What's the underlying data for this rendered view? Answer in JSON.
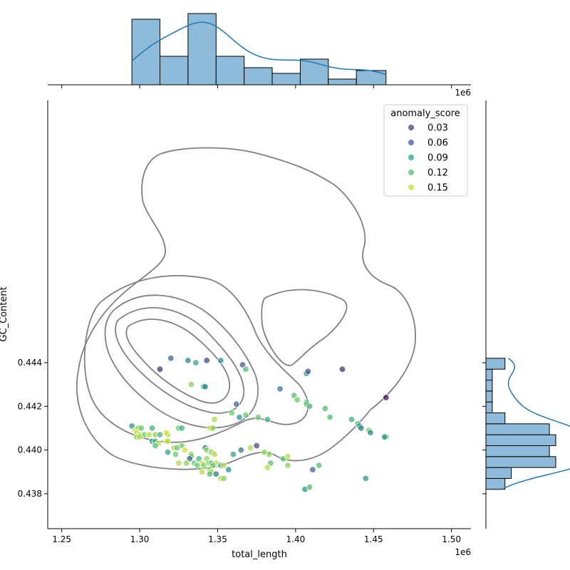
{
  "chart_data": {
    "type": "scatter",
    "xlabel": "total_length",
    "ylabel": "GC_Content",
    "x_offset_label": "1e6",
    "x_ticks": [
      "1.25",
      "1.30",
      "1.35",
      "1.40",
      "1.45",
      "1.50"
    ],
    "x_tick_values": [
      1.25,
      1.3,
      1.35,
      1.4,
      1.45,
      1.5
    ],
    "y_ticks": [
      "0.438",
      "0.440",
      "0.442",
      "0.444"
    ],
    "y_tick_values": [
      0.438,
      0.44,
      0.442,
      0.444
    ],
    "xlim": [
      1.241,
      1.5125
    ],
    "ylim": [
      0.4364,
      0.456
    ],
    "legend": {
      "title": "anomaly_score",
      "placement": "top-right",
      "entries": [
        {
          "label": "0.03",
          "color": "#46327e"
        },
        {
          "label": "0.06",
          "color": "#365c8d"
        },
        {
          "label": "0.09",
          "color": "#1fa187"
        },
        {
          "label": "0.12",
          "color": "#4ac16d"
        },
        {
          "label": "0.15",
          "color": "#bddf26"
        }
      ]
    },
    "colors": {
      "hist": "#7bafd4",
      "kde": "#1f77b4",
      "contour": "#808080"
    },
    "points": [
      {
        "x": 1.313,
        "y": 0.4437,
        "s": 0.03
      },
      {
        "x": 1.32,
        "y": 0.4442,
        "s": 0.06
      },
      {
        "x": 1.331,
        "y": 0.4441,
        "s": 0.08
      },
      {
        "x": 1.336,
        "y": 0.444,
        "s": 0.1
      },
      {
        "x": 1.343,
        "y": 0.4441,
        "s": 0.04
      },
      {
        "x": 1.352,
        "y": 0.4441,
        "s": 0.09
      },
      {
        "x": 1.366,
        "y": 0.4439,
        "s": 0.05
      },
      {
        "x": 1.368,
        "y": 0.4437,
        "s": 0.12
      },
      {
        "x": 1.407,
        "y": 0.4435,
        "s": 0.09
      },
      {
        "x": 1.408,
        "y": 0.4436,
        "s": 0.05
      },
      {
        "x": 1.43,
        "y": 0.4437,
        "s": 0.03
      },
      {
        "x": 1.333,
        "y": 0.443,
        "s": 0.14
      },
      {
        "x": 1.341,
        "y": 0.4429,
        "s": 0.1
      },
      {
        "x": 1.342,
        "y": 0.4429,
        "s": 0.08
      },
      {
        "x": 1.39,
        "y": 0.4428,
        "s": 0.07
      },
      {
        "x": 1.399,
        "y": 0.4425,
        "s": 0.12
      },
      {
        "x": 1.401,
        "y": 0.4423,
        "s": 0.13
      },
      {
        "x": 1.458,
        "y": 0.4424,
        "s": 0.01
      },
      {
        "x": 1.362,
        "y": 0.4421,
        "s": 0.06
      },
      {
        "x": 1.407,
        "y": 0.4422,
        "s": 0.12
      },
      {
        "x": 1.407,
        "y": 0.4421,
        "s": 0.13
      },
      {
        "x": 1.409,
        "y": 0.442,
        "s": 0.11
      },
      {
        "x": 1.419,
        "y": 0.4419,
        "s": 0.12
      },
      {
        "x": 1.359,
        "y": 0.4417,
        "s": 0.13
      },
      {
        "x": 1.364,
        "y": 0.4415,
        "s": 0.09
      },
      {
        "x": 1.368,
        "y": 0.4416,
        "s": 0.13
      },
      {
        "x": 1.376,
        "y": 0.4415,
        "s": 0.13
      },
      {
        "x": 1.382,
        "y": 0.4414,
        "s": 0.11
      },
      {
        "x": 1.348,
        "y": 0.4414,
        "s": 0.15
      },
      {
        "x": 1.422,
        "y": 0.4415,
        "s": 0.12
      },
      {
        "x": 1.436,
        "y": 0.4414,
        "s": 0.11
      },
      {
        "x": 1.44,
        "y": 0.4412,
        "s": 0.12
      },
      {
        "x": 1.441,
        "y": 0.4411,
        "s": 0.09
      },
      {
        "x": 1.442,
        "y": 0.441,
        "s": 0.08
      },
      {
        "x": 1.447,
        "y": 0.4409,
        "s": 0.13
      },
      {
        "x": 1.448,
        "y": 0.4408,
        "s": 0.08
      },
      {
        "x": 1.458,
        "y": 0.4406,
        "s": 0.12
      },
      {
        "x": 1.457,
        "y": 0.4406,
        "s": 0.09
      },
      {
        "x": 1.295,
        "y": 0.4411,
        "s": 0.09
      },
      {
        "x": 1.297,
        "y": 0.4409,
        "s": 0.15
      },
      {
        "x": 1.299,
        "y": 0.441,
        "s": 0.14
      },
      {
        "x": 1.301,
        "y": 0.441,
        "s": 0.13
      },
      {
        "x": 1.298,
        "y": 0.4408,
        "s": 0.16
      },
      {
        "x": 1.3,
        "y": 0.4407,
        "s": 0.15
      },
      {
        "x": 1.303,
        "y": 0.4407,
        "s": 0.13
      },
      {
        "x": 1.306,
        "y": 0.4407,
        "s": 0.15
      },
      {
        "x": 1.298,
        "y": 0.4406,
        "s": 0.14
      },
      {
        "x": 1.3,
        "y": 0.4406,
        "s": 0.15
      },
      {
        "x": 1.308,
        "y": 0.441,
        "s": 0.11
      },
      {
        "x": 1.31,
        "y": 0.4407,
        "s": 0.14
      },
      {
        "x": 1.313,
        "y": 0.4407,
        "s": 0.11
      },
      {
        "x": 1.318,
        "y": 0.4407,
        "s": 0.15
      },
      {
        "x": 1.317,
        "y": 0.4408,
        "s": 0.16
      },
      {
        "x": 1.325,
        "y": 0.441,
        "s": 0.13
      },
      {
        "x": 1.327,
        "y": 0.441,
        "s": 0.11
      },
      {
        "x": 1.345,
        "y": 0.441,
        "s": 0.16
      },
      {
        "x": 1.347,
        "y": 0.441,
        "s": 0.14
      },
      {
        "x": 1.308,
        "y": 0.4404,
        "s": 0.1
      },
      {
        "x": 1.31,
        "y": 0.4404,
        "s": 0.11
      },
      {
        "x": 1.312,
        "y": 0.4403,
        "s": 0.15
      },
      {
        "x": 1.31,
        "y": 0.4402,
        "s": 0.12
      },
      {
        "x": 1.317,
        "y": 0.4404,
        "s": 0.16
      },
      {
        "x": 1.318,
        "y": 0.4404,
        "s": 0.15
      },
      {
        "x": 1.327,
        "y": 0.4402,
        "s": 0.13
      },
      {
        "x": 1.322,
        "y": 0.4401,
        "s": 0.15
      },
      {
        "x": 1.324,
        "y": 0.4401,
        "s": 0.13
      },
      {
        "x": 1.318,
        "y": 0.4399,
        "s": 0.1
      },
      {
        "x": 1.329,
        "y": 0.44,
        "s": 0.16
      },
      {
        "x": 1.342,
        "y": 0.4401,
        "s": 0.07
      },
      {
        "x": 1.343,
        "y": 0.44,
        "s": 0.14
      },
      {
        "x": 1.346,
        "y": 0.4399,
        "s": 0.14
      },
      {
        "x": 1.348,
        "y": 0.4398,
        "s": 0.15
      },
      {
        "x": 1.323,
        "y": 0.4398,
        "s": 0.13
      },
      {
        "x": 1.333,
        "y": 0.4398,
        "s": 0.14
      },
      {
        "x": 1.333,
        "y": 0.4397,
        "s": 0.12
      },
      {
        "x": 1.332,
        "y": 0.4396,
        "s": 0.06
      },
      {
        "x": 1.338,
        "y": 0.4396,
        "s": 0.11
      },
      {
        "x": 1.343,
        "y": 0.4396,
        "s": 0.14
      },
      {
        "x": 1.335,
        "y": 0.4394,
        "s": 0.13
      },
      {
        "x": 1.34,
        "y": 0.4394,
        "s": 0.15
      },
      {
        "x": 1.344,
        "y": 0.4394,
        "s": 0.14
      },
      {
        "x": 1.346,
        "y": 0.4394,
        "s": 0.12
      },
      {
        "x": 1.349,
        "y": 0.4394,
        "s": 0.15
      },
      {
        "x": 1.325,
        "y": 0.4394,
        "s": 0.15
      },
      {
        "x": 1.33,
        "y": 0.4394,
        "s": 0.14
      },
      {
        "x": 1.337,
        "y": 0.4393,
        "s": 0.13
      },
      {
        "x": 1.341,
        "y": 0.4393,
        "s": 0.14
      },
      {
        "x": 1.347,
        "y": 0.4393,
        "s": 0.13
      },
      {
        "x": 1.352,
        "y": 0.4393,
        "s": 0.11
      },
      {
        "x": 1.354,
        "y": 0.4393,
        "s": 0.15
      },
      {
        "x": 1.345,
        "y": 0.4391,
        "s": 0.14
      },
      {
        "x": 1.357,
        "y": 0.4391,
        "s": 0.09
      },
      {
        "x": 1.34,
        "y": 0.439,
        "s": 0.15
      },
      {
        "x": 1.346,
        "y": 0.439,
        "s": 0.15
      },
      {
        "x": 1.345,
        "y": 0.4389,
        "s": 0.12
      },
      {
        "x": 1.349,
        "y": 0.4389,
        "s": 0.07
      },
      {
        "x": 1.352,
        "y": 0.4387,
        "s": 0.15
      },
      {
        "x": 1.354,
        "y": 0.4387,
        "s": 0.14
      },
      {
        "x": 1.36,
        "y": 0.4398,
        "s": 0.1
      },
      {
        "x": 1.365,
        "y": 0.44,
        "s": 0.07
      },
      {
        "x": 1.371,
        "y": 0.4401,
        "s": 0.15
      },
      {
        "x": 1.375,
        "y": 0.4402,
        "s": 0.04
      },
      {
        "x": 1.38,
        "y": 0.4399,
        "s": 0.14
      },
      {
        "x": 1.383,
        "y": 0.4398,
        "s": 0.14
      },
      {
        "x": 1.392,
        "y": 0.4396,
        "s": 0.12
      },
      {
        "x": 1.395,
        "y": 0.4397,
        "s": 0.15
      },
      {
        "x": 1.384,
        "y": 0.4394,
        "s": 0.12
      },
      {
        "x": 1.395,
        "y": 0.4393,
        "s": 0.14
      },
      {
        "x": 1.382,
        "y": 0.4392,
        "s": 0.15
      },
      {
        "x": 1.411,
        "y": 0.4391,
        "s": 0.06
      },
      {
        "x": 1.415,
        "y": 0.4393,
        "s": 0.12
      },
      {
        "x": 1.445,
        "y": 0.4387,
        "s": 0.09
      },
      {
        "x": 1.406,
        "y": 0.4382,
        "s": 0.09
      },
      {
        "x": 1.409,
        "y": 0.4383,
        "s": 0.12
      }
    ],
    "x_hist": {
      "bin_edges": [
        1.295,
        1.313,
        1.331,
        1.349,
        1.367,
        1.385,
        1.403,
        1.421,
        1.439,
        1.458
      ],
      "counts": [
        23,
        10,
        25,
        10,
        6,
        4,
        9,
        2,
        5
      ]
    },
    "y_hist": {
      "bin_edges": [
        0.4382,
        0.4387,
        0.4392,
        0.4397,
        0.4402,
        0.4407,
        0.4412,
        0.4417,
        0.4422,
        0.4427,
        0.4432,
        0.4437,
        0.4442
      ],
      "counts": [
        3,
        4,
        11,
        10,
        11,
        10,
        3,
        1,
        1,
        1,
        1,
        3
      ]
    }
  }
}
